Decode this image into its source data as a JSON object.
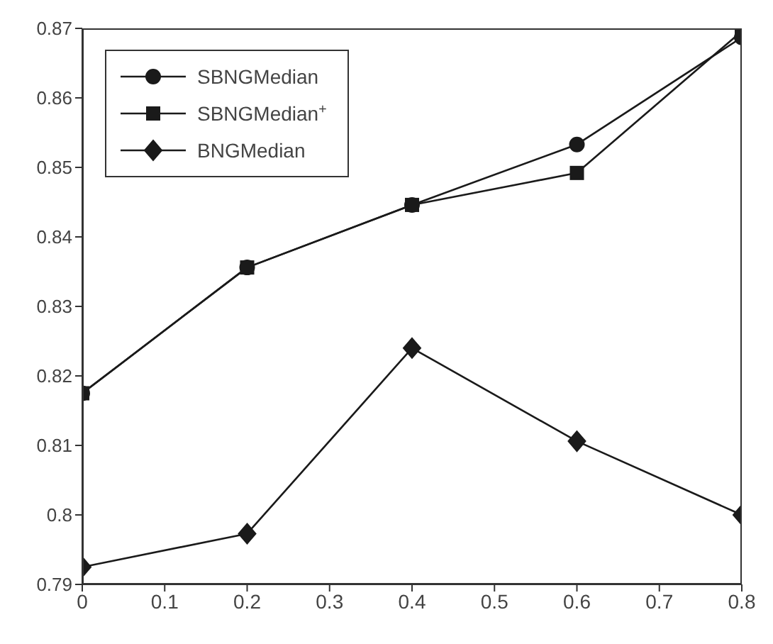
{
  "chart_data": {
    "type": "line",
    "x": [
      0,
      0.2,
      0.4,
      0.6,
      0.8
    ],
    "series": [
      {
        "name": "SBNGMedian",
        "color": "#1a1a1a",
        "marker": "circle",
        "values": [
          0.8175,
          0.8356,
          0.8446,
          0.8533,
          0.8687
        ]
      },
      {
        "name": "SBNGMedian$^{+}$",
        "color": "#1a1a1a",
        "marker": "square",
        "values": [
          0.8175,
          0.8356,
          0.8446,
          0.8492,
          0.8696
        ]
      },
      {
        "name": "BNGMedian",
        "color": "#1a1a1a",
        "marker": "diamond",
        "values": [
          0.7925,
          0.7973,
          0.824,
          0.8106,
          0.8
        ]
      }
    ],
    "xlim": [
      0,
      0.8
    ],
    "xticks": [
      0,
      0.1,
      0.2,
      0.3,
      0.4,
      0.5,
      0.6,
      0.7,
      0.8
    ],
    "ylim": [
      0.79,
      0.87
    ],
    "yticks": [
      0.79,
      0.8,
      0.81,
      0.82,
      0.83,
      0.84,
      0.85,
      0.86,
      0.87
    ],
    "grid": false,
    "legend": "top left",
    "line_style": "solid"
  }
}
